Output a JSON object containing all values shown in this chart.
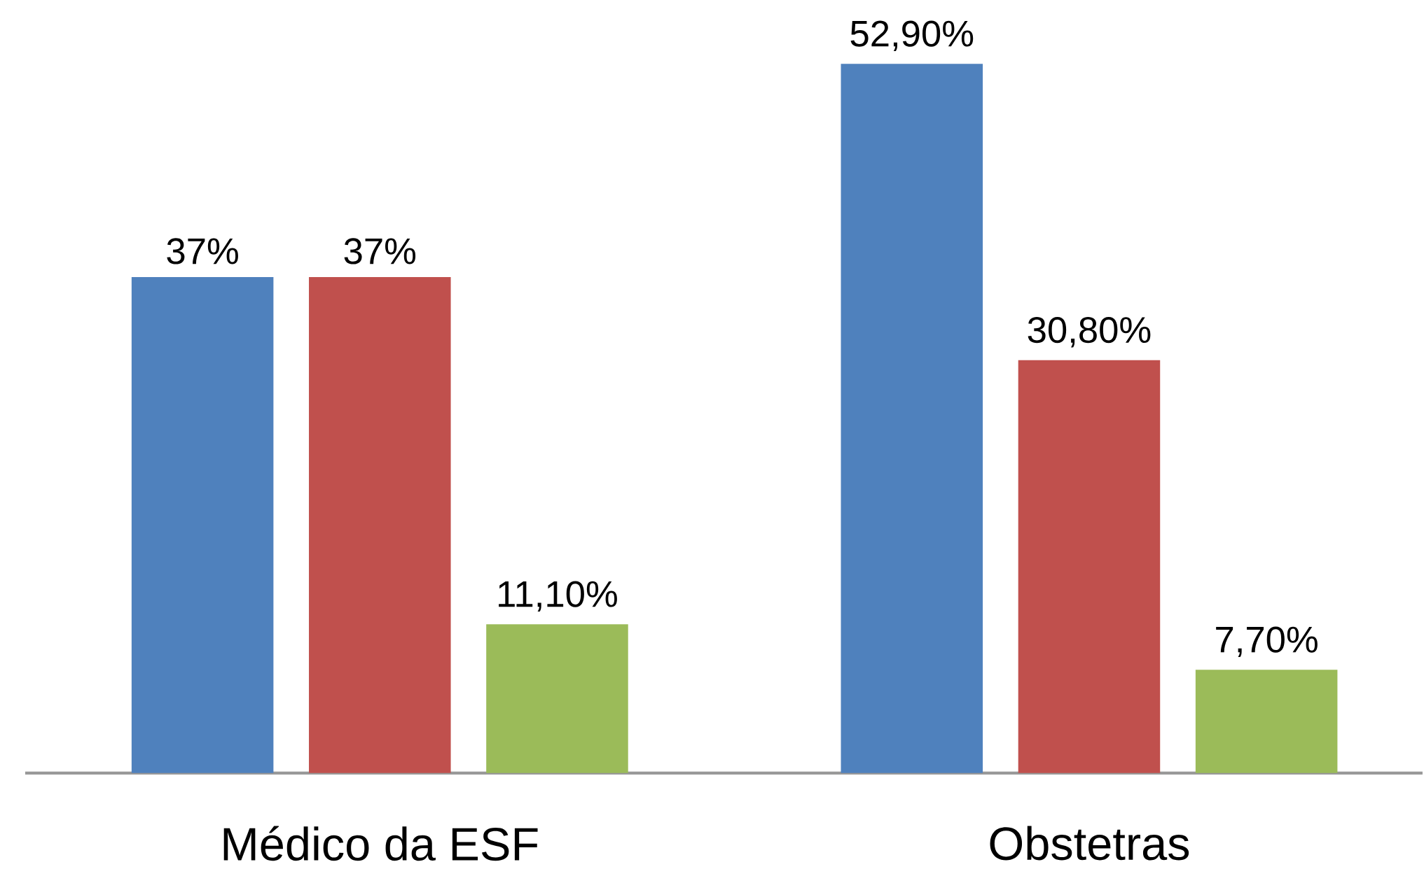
{
  "chart_data": {
    "type": "bar",
    "categories": [
      "Médico da ESF",
      "Obstetras"
    ],
    "series": [
      {
        "color": "#4f81bd",
        "values": [
          37,
          52.9
        ],
        "value_labels": [
          "37%",
          "52,90%"
        ]
      },
      {
        "color": "#c0504d",
        "values": [
          37,
          30.8
        ],
        "value_labels": [
          "37%",
          "30,80%"
        ]
      },
      {
        "color": "#9bbb59",
        "values": [
          11.1,
          7.7
        ],
        "value_labels": [
          "11,10%",
          "7,70%"
        ]
      }
    ]
  }
}
